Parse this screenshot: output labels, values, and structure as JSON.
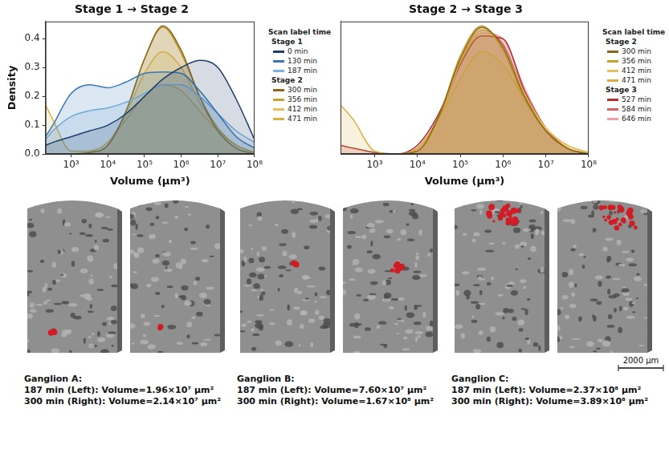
{
  "chart_data": [
    {
      "type": "area",
      "title": "Stage 1 → Stage 2",
      "x_label": "Volume (μm³)",
      "y_label": "Density",
      "log": "x",
      "grid": false,
      "legend": "right",
      "legend_title": "Scan label time",
      "xlim": [
        200,
        100000000
      ],
      "xticks": [
        {
          "value": 1000,
          "label": "10³"
        },
        {
          "value": 10000,
          "label": "10⁴"
        },
        {
          "value": 100000,
          "label": "10⁵"
        },
        {
          "value": 1000000,
          "label": "10⁶"
        },
        {
          "value": 10000000,
          "label": "10⁷"
        },
        {
          "value": 100000000,
          "label": "10⁸"
        }
      ],
      "ylim": [
        0,
        0.46
      ],
      "yticks": [
        {
          "value": 0,
          "label": "0.0"
        },
        0.1,
        0.2,
        0.3,
        0.4
      ],
      "x": [
        200,
        316,
        1000,
        3162,
        10000,
        31623,
        100000,
        316228,
        1000000,
        3162278,
        10000000,
        31622777,
        100000000
      ],
      "series": [
        {
          "name": "0 min",
          "group": "Stage 1",
          "color": "#1f3d6b",
          "values": [
            0.03,
            0.04,
            0.06,
            0.08,
            0.1,
            0.14,
            0.2,
            0.26,
            0.3,
            0.325,
            0.3,
            0.19,
            0.05
          ]
        },
        {
          "name": "130 min",
          "group": "Stage 1",
          "color": "#3a78b5",
          "values": [
            0.06,
            0.1,
            0.21,
            0.24,
            0.23,
            0.25,
            0.28,
            0.285,
            0.28,
            0.22,
            0.14,
            0.06,
            0.02
          ]
        },
        {
          "name": "187 min",
          "group": "Stage 1",
          "color": "#7ab3e0",
          "values": [
            0.05,
            0.08,
            0.13,
            0.15,
            0.16,
            0.18,
            0.21,
            0.24,
            0.24,
            0.2,
            0.14,
            0.08,
            0.04
          ]
        },
        {
          "name": "300 min",
          "group": "Stage 2",
          "color": "#8a6a1a",
          "values": [
            0,
            0,
            0,
            0.005,
            0.03,
            0.15,
            0.33,
            0.445,
            0.36,
            0.2,
            0.08,
            0.02,
            0
          ]
        },
        {
          "name": "356 min",
          "group": "Stage 2",
          "color": "#c8a030",
          "values": [
            0,
            0,
            0,
            0.005,
            0.03,
            0.15,
            0.33,
            0.44,
            0.35,
            0.2,
            0.09,
            0.03,
            0.005
          ]
        },
        {
          "name": "412 min",
          "group": "Stage 2",
          "color": "#e6c060",
          "values": [
            0,
            0,
            0,
            0.01,
            0.04,
            0.14,
            0.28,
            0.355,
            0.3,
            0.18,
            0.09,
            0.03,
            0.005
          ]
        },
        {
          "name": "471 min",
          "group": "Stage 2",
          "color": "#d8b040",
          "values": [
            0.17,
            0.12,
            0.01,
            0.01,
            0.04,
            0.12,
            0.2,
            0.24,
            0.22,
            0.15,
            0.08,
            0.03,
            0.005
          ]
        }
      ]
    },
    {
      "type": "area",
      "title": "Stage 2 → Stage 3",
      "x_label": "Volume (μm³)",
      "log": "x",
      "grid": false,
      "legend": "right",
      "legend_title": "Scan label time",
      "tick_labels": "x",
      "xlim": [
        160,
        100000000
      ],
      "xticks": [
        {
          "value": 1000,
          "label": "10³"
        },
        {
          "value": 10000,
          "label": "10⁴"
        },
        {
          "value": 100000,
          "label": "10⁵"
        },
        {
          "value": 1000000,
          "label": "10⁶"
        },
        {
          "value": 10000000,
          "label": "10⁷"
        },
        {
          "value": 100000000,
          "label": "10⁸"
        }
      ],
      "ylim": [
        0,
        0.46
      ],
      "x": [
        160,
        316,
        1000,
        3162,
        10000,
        31623,
        100000,
        316228,
        1000000,
        3162278,
        10000000,
        31622777,
        100000000
      ],
      "series": [
        {
          "name": "300 min",
          "group": "Stage 2",
          "color": "#8a6a1a",
          "values": [
            0,
            0,
            0,
            0,
            0.01,
            0.13,
            0.33,
            0.44,
            0.37,
            0.2,
            0.08,
            0.02,
            0
          ]
        },
        {
          "name": "356 min",
          "group": "Stage 2",
          "color": "#c8a030",
          "values": [
            0,
            0,
            0,
            0,
            0.01,
            0.13,
            0.34,
            0.445,
            0.36,
            0.19,
            0.08,
            0.02,
            0
          ]
        },
        {
          "name": "412 min",
          "group": "Stage 2",
          "color": "#e6c060",
          "values": [
            0,
            0,
            0,
            0,
            0.01,
            0.12,
            0.32,
            0.43,
            0.37,
            0.21,
            0.09,
            0.03,
            0.005
          ]
        },
        {
          "name": "471 min",
          "group": "Stage 2",
          "color": "#d8b040",
          "values": [
            0.17,
            0.12,
            0.01,
            0,
            0.02,
            0.12,
            0.26,
            0.355,
            0.31,
            0.19,
            0.09,
            0.03,
            0.005
          ]
        },
        {
          "name": "527 min",
          "group": "Stage 3",
          "color": "#b03030",
          "values": [
            0.03,
            0.02,
            0.005,
            0,
            0.03,
            0.14,
            0.31,
            0.41,
            0.4,
            0.22,
            0.09,
            0.02,
            0
          ]
        },
        {
          "name": "584 min",
          "group": "Stage 3",
          "color": "#d86060",
          "values": [
            0,
            0,
            0,
            0,
            0.02,
            0.13,
            0.32,
            0.43,
            0.38,
            0.21,
            0.08,
            0.02,
            0
          ]
        },
        {
          "name": "646 min",
          "group": "Stage 3",
          "color": "#f0a0a0",
          "values": [
            0,
            0,
            0,
            0,
            0.02,
            0.12,
            0.31,
            0.42,
            0.4,
            0.23,
            0.09,
            0.02,
            0
          ]
        }
      ]
    }
  ],
  "figure": {
    "panels": [
      {
        "title": "Ganglion A:",
        "lines": [
          "187 min (Left): Volume=1.96×10⁷ μm²",
          "300 min (Right): Volume=2.14×10⁷ μm²"
        ]
      },
      {
        "title": "Ganglion B:",
        "lines": [
          "187 min (Left): Volume=7.60×10⁷ μm²",
          "300 min (Right): Volume=1.67×10⁸ μm²"
        ]
      },
      {
        "title": "Ganglion C:",
        "lines": [
          "187 min (Left): Volume=2.37×10⁸ μm²",
          "300 min (Right): Volume=3.89×10⁸ μm²"
        ]
      }
    ],
    "scale_bar": "2000 μm"
  }
}
